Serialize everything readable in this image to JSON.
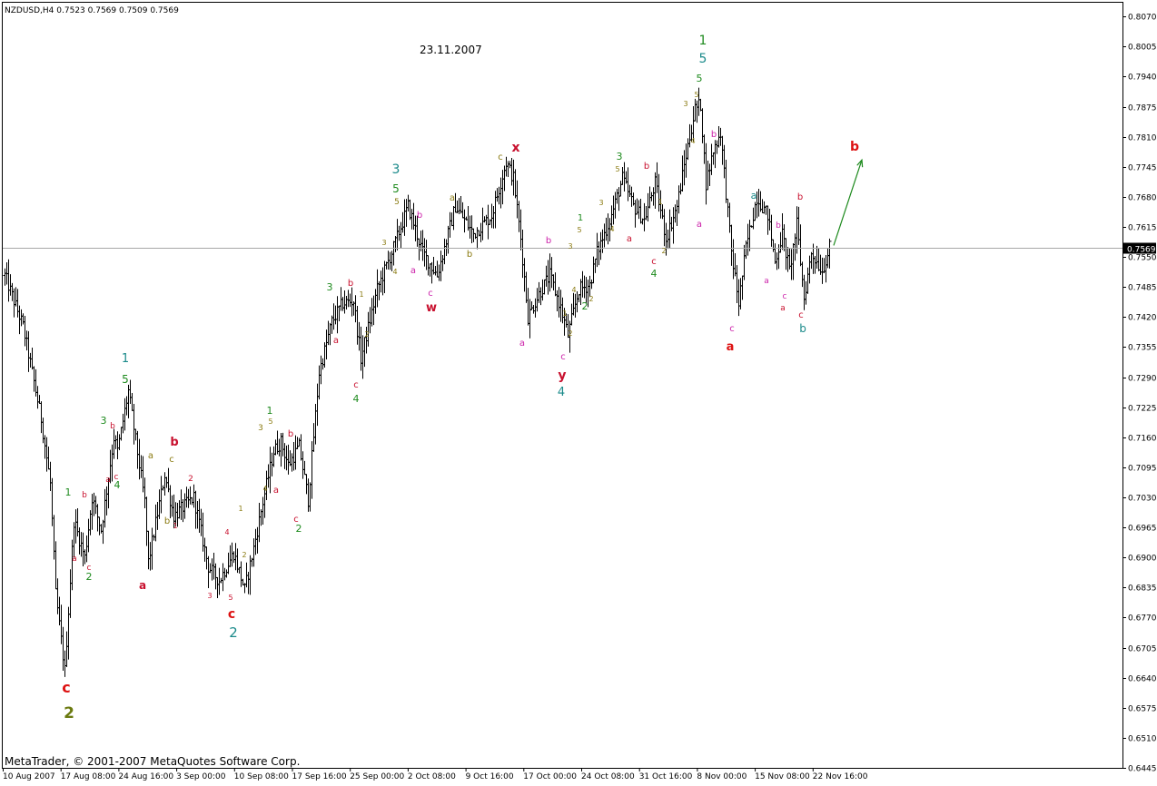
{
  "window": {
    "header_text": "NZDUSD,H4  0.7523 0.7569 0.7509 0.7569",
    "date_stamp": "23.11.2007",
    "copyright": "MetaTrader, © 2001-2007 MetaQuotes Software Corp."
  },
  "chart_data": {
    "type": "ohlc",
    "symbol": "NZDUSD",
    "timeframe": "H4",
    "ohlc_current": {
      "open": 0.7523,
      "high": 0.7569,
      "low": 0.7509,
      "close": 0.7569
    },
    "ylim": [
      0.6445,
      0.81
    ],
    "y_ticks": [
      "0.8070",
      "0.8005",
      "0.7940",
      "0.7875",
      "0.7810",
      "0.7745",
      "0.7680",
      "0.7615",
      "0.7550",
      "0.7485",
      "0.7420",
      "0.7355",
      "0.7290",
      "0.7225",
      "0.7160",
      "0.7095",
      "0.7030",
      "0.6965",
      "0.6900",
      "0.6835",
      "0.6770",
      "0.6705",
      "0.6640",
      "0.6575",
      "0.6510",
      "0.6445"
    ],
    "current_price_label": "0.7569",
    "current_price": 0.7569,
    "x_ticks": [
      "10 Aug 2007",
      "17 Aug 08:00",
      "24 Aug 16:00",
      "3 Sep 00:00",
      "10 Sep 08:00",
      "17 Sep 16:00",
      "25 Sep 00:00",
      "2 Oct 08:00",
      "9 Oct 16:00",
      "17 Oct 00:00",
      "24 Oct 08:00",
      "31 Oct 16:00",
      "8 Nov 00:00",
      "15 Nov 08:00",
      "22 Nov 16:00"
    ],
    "bar_count": 250,
    "price_path": [
      {
        "i": 0,
        "p": 0.751
      },
      {
        "i": 10,
        "p": 0.74
      },
      {
        "i": 20,
        "p": 0.72
      },
      {
        "i": 25,
        "p": 0.706
      },
      {
        "i": 28,
        "p": 0.682
      },
      {
        "i": 33,
        "p": 0.6655
      },
      {
        "i": 38,
        "p": 0.698
      },
      {
        "i": 44,
        "p": 0.69
      },
      {
        "i": 48,
        "p": 0.703
      },
      {
        "i": 53,
        "p": 0.696
      },
      {
        "i": 60,
        "p": 0.716
      },
      {
        "i": 62,
        "p": 0.713
      },
      {
        "i": 68,
        "p": 0.726
      },
      {
        "i": 77,
        "p": 0.702
      },
      {
        "i": 79,
        "p": 0.689
      },
      {
        "i": 88,
        "p": 0.708
      },
      {
        "i": 93,
        "p": 0.699
      },
      {
        "i": 104,
        "p": 0.703
      },
      {
        "i": 112,
        "p": 0.688
      },
      {
        "i": 118,
        "p": 0.685
      },
      {
        "i": 126,
        "p": 0.691
      },
      {
        "i": 132,
        "p": 0.683
      },
      {
        "i": 137,
        "p": 0.692
      },
      {
        "i": 142,
        "p": 0.702
      },
      {
        "i": 148,
        "p": 0.713
      },
      {
        "i": 152,
        "p": 0.715
      },
      {
        "i": 156,
        "p": 0.71
      },
      {
        "i": 162,
        "p": 0.714
      },
      {
        "i": 167,
        "p": 0.7025
      },
      {
        "i": 173,
        "p": 0.73
      },
      {
        "i": 180,
        "p": 0.741
      },
      {
        "i": 186,
        "p": 0.745
      },
      {
        "i": 192,
        "p": 0.7455
      },
      {
        "i": 196,
        "p": 0.733
      },
      {
        "i": 205,
        "p": 0.748
      },
      {
        "i": 214,
        "p": 0.757
      },
      {
        "i": 222,
        "p": 0.766
      },
      {
        "i": 230,
        "p": 0.756
      },
      {
        "i": 238,
        "p": 0.751
      },
      {
        "i": 248,
        "p": 0.766
      },
      {
        "i": 258,
        "p": 0.76
      },
      {
        "i": 268,
        "p": 0.764
      },
      {
        "i": 276,
        "p": 0.7755
      },
      {
        "i": 280,
        "p": 0.772
      },
      {
        "i": 284,
        "p": 0.759
      },
      {
        "i": 288,
        "p": 0.742
      },
      {
        "i": 294,
        "p": 0.747
      },
      {
        "i": 300,
        "p": 0.751
      },
      {
        "i": 306,
        "p": 0.744
      },
      {
        "i": 310,
        "p": 0.738
      },
      {
        "i": 316,
        "p": 0.748
      },
      {
        "i": 322,
        "p": 0.749
      },
      {
        "i": 326,
        "p": 0.756
      },
      {
        "i": 334,
        "p": 0.764
      },
      {
        "i": 340,
        "p": 0.772
      },
      {
        "i": 346,
        "p": 0.766
      },
      {
        "i": 352,
        "p": 0.763
      },
      {
        "i": 358,
        "p": 0.771
      },
      {
        "i": 364,
        "p": 0.759
      },
      {
        "i": 370,
        "p": 0.766
      },
      {
        "i": 375,
        "p": 0.777
      },
      {
        "i": 380,
        "p": 0.787
      },
      {
        "i": 383,
        "p": 0.788
      },
      {
        "i": 386,
        "p": 0.771
      },
      {
        "i": 390,
        "p": 0.778
      },
      {
        "i": 394,
        "p": 0.782
      },
      {
        "i": 400,
        "p": 0.756
      },
      {
        "i": 404,
        "p": 0.745
      },
      {
        "i": 408,
        "p": 0.757
      },
      {
        "i": 414,
        "p": 0.768
      },
      {
        "i": 420,
        "p": 0.764
      },
      {
        "i": 424,
        "p": 0.754
      },
      {
        "i": 428,
        "p": 0.76
      },
      {
        "i": 432,
        "p": 0.752
      },
      {
        "i": 436,
        "p": 0.762
      },
      {
        "i": 440,
        "p": 0.746
      },
      {
        "i": 444,
        "p": 0.756
      },
      {
        "i": 450,
        "p": 0.752
      },
      {
        "i": 454,
        "p": 0.7569
      }
    ],
    "wave_labels": [
      {
        "t": "c",
        "c": "#dd1111",
        "x": 73,
        "y": 763,
        "s": 16,
        "b": true
      },
      {
        "t": "2",
        "c": "#6b7a10",
        "x": 76,
        "y": 791,
        "s": 17,
        "b": true
      },
      {
        "t": "1",
        "c": "#1d8a1d",
        "x": 75,
        "y": 546,
        "s": 11
      },
      {
        "t": "a",
        "c": "#c8102e",
        "x": 82,
        "y": 618,
        "s": 9
      },
      {
        "t": "b",
        "c": "#c8102e",
        "x": 93,
        "y": 548,
        "s": 9
      },
      {
        "t": "c",
        "c": "#c8102e",
        "x": 98,
        "y": 628,
        "s": 9
      },
      {
        "t": "2",
        "c": "#1d8a1d",
        "x": 98,
        "y": 639,
        "s": 11
      },
      {
        "t": "3",
        "c": "#1d8a1d",
        "x": 114,
        "y": 467,
        "s": 11
      },
      {
        "t": "a",
        "c": "#c8102e",
        "x": 119,
        "y": 531,
        "s": 9
      },
      {
        "t": "b",
        "c": "#c8102e",
        "x": 124,
        "y": 472,
        "s": 9
      },
      {
        "t": "c",
        "c": "#c8102e",
        "x": 128,
        "y": 528,
        "s": 9
      },
      {
        "t": "4",
        "c": "#1d8a1d",
        "x": 129,
        "y": 538,
        "s": 11
      },
      {
        "t": "1",
        "c": "#1a8a8a",
        "x": 138,
        "y": 399,
        "s": 13
      },
      {
        "t": "5",
        "c": "#1d8a1d",
        "x": 138,
        "y": 422,
        "s": 12
      },
      {
        "t": "a",
        "c": "#8a7a10",
        "x": 166,
        "y": 505,
        "s": 10
      },
      {
        "t": "b",
        "c": "#c8102e",
        "x": 192,
        "y": 491,
        "s": 13,
        "b": true
      },
      {
        "t": "c",
        "c": "#8a7a10",
        "x": 189,
        "y": 509,
        "s": 10
      },
      {
        "t": "b",
        "c": "#8a7a10",
        "x": 184,
        "y": 577,
        "s": 10
      },
      {
        "t": "1",
        "c": "#c8102e",
        "x": 193,
        "y": 582,
        "s": 8
      },
      {
        "t": "2",
        "c": "#c8102e",
        "x": 210,
        "y": 530,
        "s": 9
      },
      {
        "t": "a",
        "c": "#c8102e",
        "x": 157,
        "y": 649,
        "s": 12,
        "b": true
      },
      {
        "t": "3",
        "c": "#c8102e",
        "x": 231,
        "y": 659,
        "s": 8
      },
      {
        "t": "4",
        "c": "#c8102e",
        "x": 250,
        "y": 589,
        "s": 8
      },
      {
        "t": "5",
        "c": "#c8102e",
        "x": 254,
        "y": 661,
        "s": 8
      },
      {
        "t": "c",
        "c": "#dd1111",
        "x": 255,
        "y": 681,
        "s": 14,
        "b": true
      },
      {
        "t": "2",
        "c": "#1a8a8a",
        "x": 257,
        "y": 702,
        "s": 15
      },
      {
        "t": "1",
        "c": "#8a7a10",
        "x": 265,
        "y": 563,
        "s": 8
      },
      {
        "t": "2",
        "c": "#8a7a10",
        "x": 269,
        "y": 614,
        "s": 8
      },
      {
        "t": "3",
        "c": "#8a7a10",
        "x": 287,
        "y": 474,
        "s": 9
      },
      {
        "t": "1",
        "c": "#1d8a1d",
        "x": 297,
        "y": 456,
        "s": 11
      },
      {
        "t": "5",
        "c": "#8a7a10",
        "x": 298,
        "y": 467,
        "s": 8
      },
      {
        "t": "4",
        "c": "#8a7a10",
        "x": 292,
        "y": 541,
        "s": 8
      },
      {
        "t": "a",
        "c": "#c8102e",
        "x": 304,
        "y": 543,
        "s": 10
      },
      {
        "t": "b",
        "c": "#c8102e",
        "x": 320,
        "y": 481,
        "s": 10
      },
      {
        "t": "c",
        "c": "#c8102e",
        "x": 326,
        "y": 575,
        "s": 10
      },
      {
        "t": "2",
        "c": "#1d8a1d",
        "x": 329,
        "y": 586,
        "s": 11
      },
      {
        "t": "3",
        "c": "#1d8a1d",
        "x": 363,
        "y": 320,
        "s": 11
      },
      {
        "t": "a",
        "c": "#c8102e",
        "x": 370,
        "y": 378,
        "s": 10
      },
      {
        "t": "b",
        "c": "#c8102e",
        "x": 386,
        "y": 315,
        "s": 10
      },
      {
        "t": "1",
        "c": "#8a7a10",
        "x": 398,
        "y": 327,
        "s": 8
      },
      {
        "t": "2",
        "c": "#8a7a10",
        "x": 404,
        "y": 371,
        "s": 8
      },
      {
        "t": "c",
        "c": "#c8102e",
        "x": 392,
        "y": 427,
        "s": 10
      },
      {
        "t": "4",
        "c": "#1d8a1d",
        "x": 392,
        "y": 443,
        "s": 11
      },
      {
        "t": "3",
        "c": "#8a7a10",
        "x": 423,
        "y": 270,
        "s": 8
      },
      {
        "t": "4",
        "c": "#8a7a10",
        "x": 435,
        "y": 302,
        "s": 8
      },
      {
        "t": "3",
        "c": "#1a8a8a",
        "x": 436,
        "y": 191,
        "s": 14
      },
      {
        "t": "5",
        "c": "#1d8a1d",
        "x": 436,
        "y": 212,
        "s": 12
      },
      {
        "t": "5",
        "c": "#8a7a10",
        "x": 437,
        "y": 225,
        "s": 9
      },
      {
        "t": "b",
        "c": "#cc22aa",
        "x": 462,
        "y": 240,
        "s": 10
      },
      {
        "t": "a",
        "c": "#cc22aa",
        "x": 455,
        "y": 301,
        "s": 10
      },
      {
        "t": "c",
        "c": "#cc22aa",
        "x": 474,
        "y": 326,
        "s": 10
      },
      {
        "t": "w",
        "c": "#c8102e",
        "x": 475,
        "y": 343,
        "s": 13,
        "b": true
      },
      {
        "t": "a",
        "c": "#8a7a10",
        "x": 498,
        "y": 221,
        "s": 10
      },
      {
        "t": "b",
        "c": "#8a7a10",
        "x": 517,
        "y": 283,
        "s": 10
      },
      {
        "t": "c",
        "c": "#8a7a10",
        "x": 551,
        "y": 176,
        "s": 10
      },
      {
        "t": "x",
        "c": "#c8102e",
        "x": 568,
        "y": 167,
        "s": 14,
        "b": true
      },
      {
        "t": "a",
        "c": "#cc22aa",
        "x": 575,
        "y": 381,
        "s": 10
      },
      {
        "t": "b",
        "c": "#cc22aa",
        "x": 604,
        "y": 268,
        "s": 10
      },
      {
        "t": "c",
        "c": "#cc22aa",
        "x": 620,
        "y": 396,
        "s": 10
      },
      {
        "t": "y",
        "c": "#c8102e",
        "x": 619,
        "y": 418,
        "s": 14,
        "b": true
      },
      {
        "t": "4",
        "c": "#1a8a8a",
        "x": 618,
        "y": 436,
        "s": 13
      },
      {
        "t": "1",
        "c": "#8a7a10",
        "x": 622,
        "y": 348,
        "s": 8
      },
      {
        "t": "2",
        "c": "#8a7a10",
        "x": 628,
        "y": 370,
        "s": 8
      },
      {
        "t": "3",
        "c": "#8a7a10",
        "x": 628,
        "y": 274,
        "s": 8
      },
      {
        "t": "4",
        "c": "#8a7a10",
        "x": 632,
        "y": 322,
        "s": 8
      },
      {
        "t": "1",
        "c": "#1d8a1d",
        "x": 639,
        "y": 243,
        "s": 10
      },
      {
        "t": "5",
        "c": "#8a7a10",
        "x": 638,
        "y": 256,
        "s": 8
      },
      {
        "t": "2",
        "c": "#8a7a10",
        "x": 651,
        "y": 332,
        "s": 8
      },
      {
        "t": "2",
        "c": "#1d8a1d",
        "x": 644,
        "y": 341,
        "s": 11
      },
      {
        "t": "3",
        "c": "#8a7a10",
        "x": 662,
        "y": 226,
        "s": 8
      },
      {
        "t": "3",
        "c": "#1d8a1d",
        "x": 682,
        "y": 176,
        "s": 11
      },
      {
        "t": "5",
        "c": "#8a7a10",
        "x": 680,
        "y": 189,
        "s": 8
      },
      {
        "t": "4",
        "c": "#8a7a10",
        "x": 674,
        "y": 255,
        "s": 8
      },
      {
        "t": "a",
        "c": "#c8102e",
        "x": 693,
        "y": 266,
        "s": 10
      },
      {
        "t": "b",
        "c": "#c8102e",
        "x": 712,
        "y": 186,
        "s": 10
      },
      {
        "t": "1",
        "c": "#8a7a10",
        "x": 727,
        "y": 225,
        "s": 8
      },
      {
        "t": "2",
        "c": "#8a7a10",
        "x": 731,
        "y": 279,
        "s": 8
      },
      {
        "t": "c",
        "c": "#c8102e",
        "x": 720,
        "y": 291,
        "s": 10
      },
      {
        "t": "4",
        "c": "#1d8a1d",
        "x": 720,
        "y": 305,
        "s": 11
      },
      {
        "t": "3",
        "c": "#8a7a10",
        "x": 755,
        "y": 117,
        "s": 8
      },
      {
        "t": "4",
        "c": "#8a7a10",
        "x": 763,
        "y": 158,
        "s": 8
      },
      {
        "t": "5",
        "c": "#8a7a10",
        "x": 767,
        "y": 107,
        "s": 8
      },
      {
        "t": "5",
        "c": "#1d8a1d",
        "x": 770,
        "y": 90,
        "s": 11
      },
      {
        "t": "5",
        "c": "#1a8a8a",
        "x": 774,
        "y": 69,
        "s": 14
      },
      {
        "t": "1",
        "c": "#1d8a1d",
        "x": 774,
        "y": 49,
        "s": 14
      },
      {
        "t": "b",
        "c": "#cc22aa",
        "x": 786,
        "y": 151,
        "s": 10
      },
      {
        "t": "a",
        "c": "#cc22aa",
        "x": 770,
        "y": 250,
        "s": 10
      },
      {
        "t": "c",
        "c": "#cc22aa",
        "x": 806,
        "y": 365,
        "s": 10
      },
      {
        "t": "a",
        "c": "#dd1111",
        "x": 804,
        "y": 386,
        "s": 13,
        "b": true
      },
      {
        "t": "a",
        "c": "#1a8a8a",
        "x": 830,
        "y": 219,
        "s": 11
      },
      {
        "t": "b",
        "c": "#cc22aa",
        "x": 857,
        "y": 251,
        "s": 9
      },
      {
        "t": "a",
        "c": "#cc22aa",
        "x": 844,
        "y": 312,
        "s": 9
      },
      {
        "t": "c",
        "c": "#cc22aa",
        "x": 864,
        "y": 329,
        "s": 9
      },
      {
        "t": "a",
        "c": "#c8102e",
        "x": 862,
        "y": 342,
        "s": 9
      },
      {
        "t": "b",
        "c": "#c8102e",
        "x": 881,
        "y": 220,
        "s": 10
      },
      {
        "t": "c",
        "c": "#c8102e",
        "x": 882,
        "y": 350,
        "s": 10
      },
      {
        "t": "b",
        "c": "#1a8a8a",
        "x": 884,
        "y": 366,
        "s": 12
      },
      {
        "t": "b",
        "c": "#dd1111",
        "x": 941,
        "y": 166,
        "s": 14,
        "b": true
      }
    ],
    "forecast_arrow": {
      "color": "#1d8a1d",
      "from": {
        "i": 454,
        "p": 0.7575
      },
      "to": {
        "i": 463,
        "p": 0.776
      }
    }
  }
}
